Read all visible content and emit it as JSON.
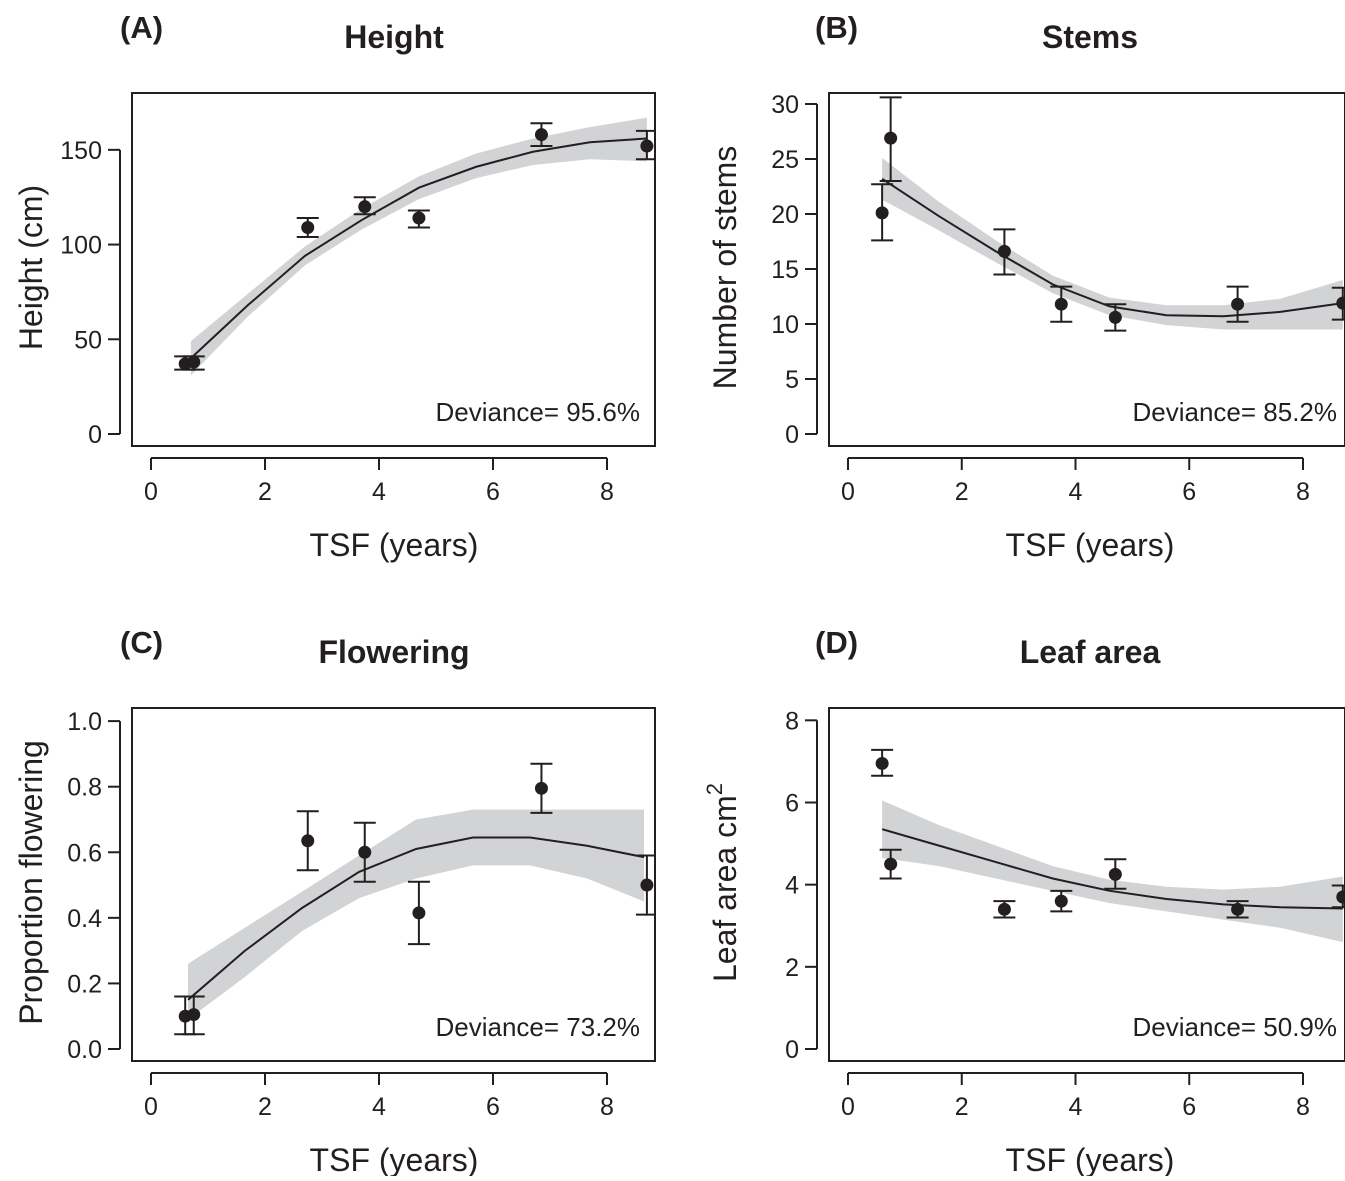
{
  "colors": {
    "ink": "#231f20",
    "band": "#d2d3d5"
  },
  "chart_data": [
    {
      "type": "scatter",
      "letter": "(A)",
      "title": "Height",
      "xlabel": "TSF (years)",
      "ylabel": "Height (cm)",
      "xlim": [
        0,
        8.7
      ],
      "ylim": [
        0,
        180
      ],
      "xticks": [
        0,
        2,
        4,
        6,
        8
      ],
      "yticks": [
        0,
        50,
        100,
        150
      ],
      "ytick_labels": [
        "0",
        "50",
        "100",
        "150"
      ],
      "annotation": "Deviance= 95.6%",
      "points": [
        {
          "x": 0.6,
          "y": 37,
          "lo": 34,
          "hi": 41
        },
        {
          "x": 0.75,
          "y": 38,
          "lo": 34,
          "hi": 41
        },
        {
          "x": 2.75,
          "y": 109,
          "lo": 104,
          "hi": 114
        },
        {
          "x": 3.75,
          "y": 120,
          "lo": 116,
          "hi": 125
        },
        {
          "x": 4.7,
          "y": 114,
          "lo": 109,
          "hi": 118
        },
        {
          "x": 6.85,
          "y": 158,
          "lo": 152,
          "hi": 164
        },
        {
          "x": 8.7,
          "y": 152,
          "lo": 145,
          "hi": 160
        }
      ],
      "fit": [
        [
          0.7,
          40
        ],
        [
          1.7,
          68
        ],
        [
          2.7,
          94
        ],
        [
          3.7,
          113
        ],
        [
          4.7,
          130
        ],
        [
          5.7,
          141
        ],
        [
          6.7,
          149
        ],
        [
          7.7,
          154
        ],
        [
          8.7,
          156
        ]
      ],
      "band_upper": [
        [
          0.7,
          49
        ],
        [
          1.7,
          74
        ],
        [
          2.7,
          99
        ],
        [
          3.7,
          119
        ],
        [
          4.7,
          136
        ],
        [
          5.7,
          148
        ],
        [
          6.7,
          156
        ],
        [
          7.7,
          162
        ],
        [
          8.7,
          167
        ]
      ],
      "band_lower": [
        [
          0.7,
          31
        ],
        [
          1.7,
          62
        ],
        [
          2.7,
          89
        ],
        [
          3.7,
          108
        ],
        [
          4.7,
          124
        ],
        [
          5.7,
          135
        ],
        [
          6.7,
          142
        ],
        [
          7.7,
          145
        ],
        [
          8.7,
          144
        ]
      ]
    },
    {
      "type": "scatter",
      "letter": "(B)",
      "title": "Stems",
      "xlabel": "TSF (years)",
      "ylabel": "Number of stems",
      "xlim": [
        0,
        8.7
      ],
      "ylim": [
        0,
        31
      ],
      "xticks": [
        0,
        2,
        4,
        6,
        8
      ],
      "yticks": [
        0,
        5,
        10,
        15,
        20,
        25,
        30
      ],
      "ytick_labels": [
        "0",
        "5",
        "10",
        "15",
        "20",
        "25",
        "30"
      ],
      "annotation": "Deviance= 85.2%",
      "points": [
        {
          "x": 0.6,
          "y": 20.1,
          "lo": 17.6,
          "hi": 22.7
        },
        {
          "x": 0.75,
          "y": 26.9,
          "lo": 23.0,
          "hi": 30.6
        },
        {
          "x": 2.75,
          "y": 16.6,
          "lo": 14.5,
          "hi": 18.6
        },
        {
          "x": 3.75,
          "y": 11.8,
          "lo": 10.2,
          "hi": 13.4
        },
        {
          "x": 4.7,
          "y": 10.6,
          "lo": 9.4,
          "hi": 11.8
        },
        {
          "x": 6.85,
          "y": 11.8,
          "lo": 10.2,
          "hi": 13.4
        },
        {
          "x": 8.7,
          "y": 11.9,
          "lo": 10.4,
          "hi": 13.3
        }
      ],
      "fit": [
        [
          0.6,
          23.2
        ],
        [
          1.6,
          19.8
        ],
        [
          2.6,
          16.6
        ],
        [
          3.6,
          13.6
        ],
        [
          4.6,
          11.6
        ],
        [
          5.6,
          10.8
        ],
        [
          6.6,
          10.7
        ],
        [
          7.6,
          11.1
        ],
        [
          8.7,
          11.9
        ]
      ],
      "band_upper": [
        [
          0.6,
          25.1
        ],
        [
          1.6,
          21.1
        ],
        [
          2.6,
          17.6
        ],
        [
          3.6,
          14.4
        ],
        [
          4.6,
          12.4
        ],
        [
          5.6,
          11.7
        ],
        [
          6.6,
          11.7
        ],
        [
          7.6,
          12.3
        ],
        [
          8.7,
          14.0
        ]
      ],
      "band_lower": [
        [
          0.6,
          21.3
        ],
        [
          1.6,
          18.5
        ],
        [
          2.6,
          15.6
        ],
        [
          3.6,
          12.8
        ],
        [
          4.6,
          10.8
        ],
        [
          5.6,
          9.9
        ],
        [
          6.6,
          9.5
        ],
        [
          7.6,
          9.5
        ],
        [
          8.7,
          9.5
        ]
      ]
    },
    {
      "type": "scatter",
      "letter": "(C)",
      "title": "Flowering",
      "xlabel": "TSF (years)",
      "ylabel": "Proportion flowering",
      "xlim": [
        0,
        8.7
      ],
      "ylim": [
        0,
        1.04
      ],
      "xticks": [
        0,
        2,
        4,
        6,
        8
      ],
      "yticks": [
        0,
        0.2,
        0.4,
        0.6,
        0.8,
        1.0
      ],
      "ytick_labels": [
        "0.0",
        "0.2",
        "0.4",
        "0.6",
        "0.8",
        "1.0"
      ],
      "annotation": "Deviance= 73.2%",
      "points": [
        {
          "x": 0.6,
          "y": 0.1,
          "lo": 0.045,
          "hi": 0.16
        },
        {
          "x": 0.75,
          "y": 0.105,
          "lo": 0.045,
          "hi": 0.16
        },
        {
          "x": 2.75,
          "y": 0.635,
          "lo": 0.545,
          "hi": 0.725
        },
        {
          "x": 3.75,
          "y": 0.6,
          "lo": 0.51,
          "hi": 0.69
        },
        {
          "x": 4.7,
          "y": 0.415,
          "lo": 0.32,
          "hi": 0.51
        },
        {
          "x": 6.85,
          "y": 0.795,
          "lo": 0.72,
          "hi": 0.87
        },
        {
          "x": 8.7,
          "y": 0.5,
          "lo": 0.41,
          "hi": 0.59
        }
      ],
      "fit": [
        [
          0.65,
          0.15
        ],
        [
          1.65,
          0.3
        ],
        [
          2.65,
          0.43
        ],
        [
          3.65,
          0.54
        ],
        [
          4.65,
          0.61
        ],
        [
          5.65,
          0.645
        ],
        [
          6.65,
          0.645
        ],
        [
          7.65,
          0.62
        ],
        [
          8.65,
          0.585
        ]
      ],
      "band_upper": [
        [
          0.65,
          0.26
        ],
        [
          1.65,
          0.37
        ],
        [
          2.65,
          0.48
        ],
        [
          3.65,
          0.59
        ],
        [
          4.65,
          0.7
        ],
        [
          5.65,
          0.73
        ],
        [
          6.65,
          0.73
        ],
        [
          7.65,
          0.73
        ],
        [
          8.65,
          0.73
        ]
      ],
      "band_lower": [
        [
          0.65,
          0.09
        ],
        [
          1.65,
          0.22
        ],
        [
          2.65,
          0.36
        ],
        [
          3.65,
          0.46
        ],
        [
          4.65,
          0.52
        ],
        [
          5.65,
          0.56
        ],
        [
          6.65,
          0.56
        ],
        [
          7.65,
          0.52
        ],
        [
          8.65,
          0.45
        ]
      ]
    },
    {
      "type": "scatter",
      "letter": "(D)",
      "title": "Leaf area",
      "xlabel": "TSF (years)",
      "ylabel": "Leaf area cm",
      "ylabel_sup": "2",
      "xlim": [
        0,
        8.7
      ],
      "ylim": [
        0,
        8.3
      ],
      "xticks": [
        0,
        2,
        4,
        6,
        8
      ],
      "yticks": [
        0,
        2,
        4,
        6,
        8
      ],
      "ytick_labels": [
        "0",
        "2",
        "4",
        "6",
        "8"
      ],
      "annotation": "Deviance= 50.9%",
      "points": [
        {
          "x": 0.6,
          "y": 6.95,
          "lo": 6.65,
          "hi": 7.28
        },
        {
          "x": 0.75,
          "y": 4.5,
          "lo": 4.15,
          "hi": 4.85
        },
        {
          "x": 2.75,
          "y": 3.4,
          "lo": 3.2,
          "hi": 3.6
        },
        {
          "x": 3.75,
          "y": 3.6,
          "lo": 3.35,
          "hi": 3.85
        },
        {
          "x": 4.7,
          "y": 4.25,
          "lo": 3.9,
          "hi": 4.62
        },
        {
          "x": 6.85,
          "y": 3.4,
          "lo": 3.2,
          "hi": 3.6
        },
        {
          "x": 8.7,
          "y": 3.7,
          "lo": 3.45,
          "hi": 3.98
        }
      ],
      "fit": [
        [
          0.6,
          5.35
        ],
        [
          1.6,
          4.95
        ],
        [
          2.6,
          4.55
        ],
        [
          3.6,
          4.15
        ],
        [
          4.6,
          3.85
        ],
        [
          5.6,
          3.65
        ],
        [
          6.6,
          3.52
        ],
        [
          7.6,
          3.45
        ],
        [
          8.7,
          3.42
        ]
      ],
      "band_upper": [
        [
          0.6,
          6.05
        ],
        [
          1.6,
          5.45
        ],
        [
          2.6,
          4.95
        ],
        [
          3.6,
          4.45
        ],
        [
          4.6,
          4.12
        ],
        [
          5.6,
          3.95
        ],
        [
          6.6,
          3.88
        ],
        [
          7.6,
          3.95
        ],
        [
          8.7,
          4.2
        ]
      ],
      "band_lower": [
        [
          0.6,
          4.65
        ],
        [
          1.6,
          4.45
        ],
        [
          2.6,
          4.15
        ],
        [
          3.6,
          3.85
        ],
        [
          4.6,
          3.55
        ],
        [
          5.6,
          3.35
        ],
        [
          6.6,
          3.15
        ],
        [
          7.6,
          2.95
        ],
        [
          8.7,
          2.6
        ]
      ]
    }
  ]
}
